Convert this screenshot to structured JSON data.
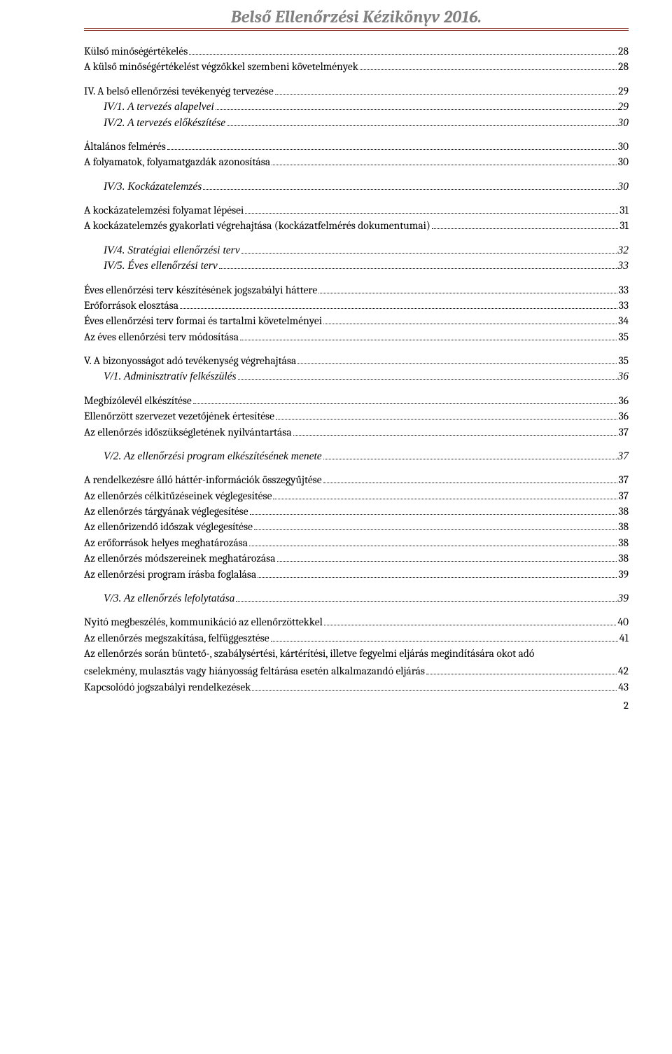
{
  "header": {
    "title": "Belső Ellenőrzési Kézikönyv 2016."
  },
  "toc": [
    {
      "text": "Külső minőségértékelés",
      "page": "28",
      "level": "lvl0",
      "gap_before": false
    },
    {
      "text": "A külső minőségértékelést végzőkkel szembeni követelmények",
      "page": "28",
      "level": "lvl0",
      "gap_before": false
    },
    {
      "text": "IV.   A belső ellenőrzési tevékenyég tervezése",
      "page": "29",
      "level": "lvl0",
      "gap_before": true
    },
    {
      "text": "IV/1. A tervezés alapelvei",
      "page": "29",
      "level": "lvl1",
      "gap_before": false
    },
    {
      "text": "IV/2. A tervezés előkészítése",
      "page": "30",
      "level": "lvl1",
      "gap_before": false
    },
    {
      "text": "Általános felmérés",
      "page": "30",
      "level": "lvl0",
      "gap_before": true
    },
    {
      "text": "A folyamatok, folyamatgazdák azonosítása",
      "page": "30",
      "level": "lvl0",
      "gap_before": false
    },
    {
      "text": "IV/3. Kockázatelemzés",
      "page": "30",
      "level": "lvl1",
      "gap_before": true
    },
    {
      "text": "A kockázatelemzési folyamat lépései",
      "page": "31",
      "level": "lvl0",
      "gap_before": true
    },
    {
      "text": "A kockázatelemzés gyakorlati végrehajtása (kockázatfelmérés dokumentumai)",
      "page": "31",
      "level": "lvl0",
      "gap_before": false
    },
    {
      "text": "IV/4. Stratégiai ellenőrzési terv",
      "page": "32",
      "level": "lvl1",
      "gap_before": true
    },
    {
      "text": "IV/5. Éves ellenőrzési terv",
      "page": "33",
      "level": "lvl1",
      "gap_before": false
    },
    {
      "text": "Éves ellenőrzési terv készítésének jogszabályi háttere",
      "page": "33",
      "level": "lvl0",
      "gap_before": true
    },
    {
      "text": "Erőforrások elosztása",
      "page": "33",
      "level": "lvl0",
      "gap_before": false
    },
    {
      "text": "Éves ellenőrzési terv formai és tartalmi követelményei",
      "page": "34",
      "level": "lvl0",
      "gap_before": false
    },
    {
      "text": "Az éves ellenőrzési terv módosítása",
      "page": "35",
      "level": "lvl0",
      "gap_before": false
    },
    {
      "text": "V.    A bizonyosságot adó tevékenység végrehajtása",
      "page": "35",
      "level": "lvl0",
      "gap_before": true
    },
    {
      "text": "V/1. Adminisztratív felkészülés",
      "page": "36",
      "level": "lvl1",
      "gap_before": false
    },
    {
      "text": "Megbízólevél elkészítése",
      "page": "36",
      "level": "lvl0",
      "gap_before": true
    },
    {
      "text": "Ellenőrzött szervezet vezetőjének értesítése",
      "page": "36",
      "level": "lvl0",
      "gap_before": false
    },
    {
      "text": "Az ellenőrzés időszükségletének nyilvántartása",
      "page": "37",
      "level": "lvl0",
      "gap_before": false
    },
    {
      "text": "V/2. Az ellenőrzési program elkészítésének menete",
      "page": "37",
      "level": "lvl1",
      "gap_before": true
    },
    {
      "text": "A rendelkezésre álló háttér-információk összegyűjtése",
      "page": "37",
      "level": "lvl0",
      "gap_before": true
    },
    {
      "text": "Az ellenőrzés célkitűzéseinek véglegesítése",
      "page": "37",
      "level": "lvl0",
      "gap_before": false
    },
    {
      "text": "Az ellenőrzés tárgyának véglegesítése",
      "page": "38",
      "level": "lvl0",
      "gap_before": false
    },
    {
      "text": "Az ellenőrizendő időszak véglegesítése",
      "page": "38",
      "level": "lvl0",
      "gap_before": false
    },
    {
      "text": "Az erőforrások helyes meghatározása",
      "page": "38",
      "level": "lvl0",
      "gap_before": false
    },
    {
      "text": "Az ellenőrzés módszereinek meghatározása",
      "page": "38",
      "level": "lvl0",
      "gap_before": false
    },
    {
      "text": "Az ellenőrzési program írásba foglalása",
      "page": "39",
      "level": "lvl0",
      "gap_before": false
    },
    {
      "text": "V/3. Az ellenőrzés lefolytatása",
      "page": "39",
      "level": "lvl1",
      "gap_before": true
    },
    {
      "text": "Nyitó megbeszélés, kommunikáció az ellenőrzöttekkel",
      "page": "40",
      "level": "lvl0",
      "gap_before": true
    },
    {
      "text": "Az ellenőrzés megszakítása, felfüggesztése",
      "page": "41",
      "level": "lvl0",
      "gap_before": false
    },
    {
      "text": "Az ellenőrzés során büntető-, szabálysértési, kártérítési, illetve fegyelmi eljárás megindítására okot adó cselekmény, mulasztás vagy hiányosság feltárása esetén alkalmazandó eljárás",
      "page": "42",
      "level": "lvl0",
      "gap_before": false,
      "wrap": true
    },
    {
      "text": "Kapcsolódó jogszabályi rendelkezések",
      "page": "43",
      "level": "lvl0",
      "gap_before": false
    }
  ],
  "page_number": "2",
  "colors": {
    "header_text": "#808080",
    "rule": "#8a3324",
    "body_text": "#000000",
    "background": "#ffffff"
  },
  "typography": {
    "header_fontsize_pt": 18,
    "body_fontsize_pt": 11,
    "header_italic": true,
    "header_bold": true
  }
}
